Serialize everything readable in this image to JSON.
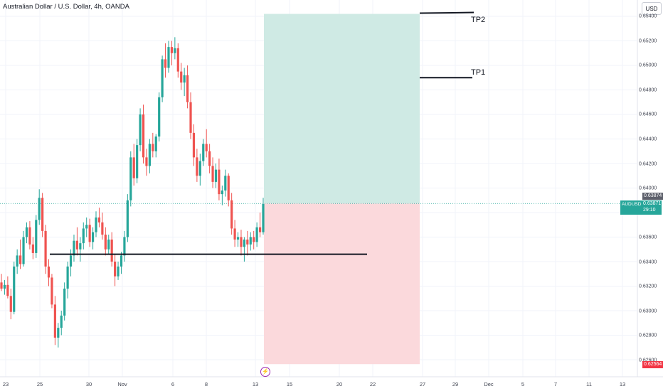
{
  "header": {
    "title": "Australian Dollar / U.S. Dollar, 4h, OANDA",
    "currency_button": "USD"
  },
  "price_axis": {
    "labels": [
      "0.65400",
      "0.65200",
      "0.65000",
      "0.64800",
      "0.64600",
      "0.64400",
      "0.64200",
      "0.64000",
      "0.63600",
      "0.63400",
      "0.63200",
      "0.63000",
      "0.62800",
      "0.62600"
    ],
    "current_price": "0.63874",
    "symbol": "AUDUSD",
    "last_price": "0.63871",
    "countdown": "29:10",
    "stop_price": "0.62564"
  },
  "time_axis": {
    "labels": [
      "23",
      "25",
      "30",
      "Nov",
      "6",
      "8",
      "13",
      "15",
      "20",
      "22",
      "27",
      "29",
      "Dec",
      "5",
      "7",
      "11",
      "13"
    ]
  },
  "annotations": {
    "tp1_label": "TP1",
    "tp2_label": "TP2"
  },
  "colors": {
    "up": "#26a69a",
    "down": "#ef5350",
    "profit_zone": "#cfeae4",
    "loss_zone": "#fbd9dc",
    "symbol_badge": "#26a69a",
    "price_badge": "#5d606b",
    "stop_badge": "#f23645"
  },
  "chart_data": {
    "type": "candlestick",
    "symbol": "AUDUSD",
    "timeframe": "4h",
    "ylim": [
      0.6248,
      0.6548
    ],
    "candles": [
      [
        0.6323,
        0.633,
        0.6316,
        0.6318
      ],
      [
        0.6318,
        0.6325,
        0.6313,
        0.6321
      ],
      [
        0.6321,
        0.6328,
        0.631,
        0.6312
      ],
      [
        0.6312,
        0.6318,
        0.6293,
        0.6299
      ],
      [
        0.6299,
        0.634,
        0.6297,
        0.6336
      ],
      [
        0.6336,
        0.635,
        0.633,
        0.6345
      ],
      [
        0.6345,
        0.6358,
        0.6334,
        0.6338
      ],
      [
        0.6338,
        0.6365,
        0.6336,
        0.636
      ],
      [
        0.636,
        0.6372,
        0.6355,
        0.6368
      ],
      [
        0.6368,
        0.6373,
        0.635,
        0.6354
      ],
      [
        0.6354,
        0.636,
        0.6342,
        0.6347
      ],
      [
        0.6347,
        0.6378,
        0.6343,
        0.6374
      ],
      [
        0.6374,
        0.6399,
        0.637,
        0.6392
      ],
      [
        0.6392,
        0.6396,
        0.636,
        0.6365
      ],
      [
        0.6365,
        0.637,
        0.633,
        0.6336
      ],
      [
        0.6336,
        0.6342,
        0.632,
        0.6327
      ],
      [
        0.6327,
        0.633,
        0.6302,
        0.6305
      ],
      [
        0.6305,
        0.6312,
        0.6272,
        0.6278
      ],
      [
        0.6278,
        0.629,
        0.627,
        0.6286
      ],
      [
        0.6286,
        0.63,
        0.628,
        0.6296
      ],
      [
        0.6296,
        0.6323,
        0.6292,
        0.6318
      ],
      [
        0.6318,
        0.634,
        0.631,
        0.6336
      ],
      [
        0.6336,
        0.635,
        0.6328,
        0.6345
      ],
      [
        0.6345,
        0.6362,
        0.634,
        0.6357
      ],
      [
        0.6357,
        0.6368,
        0.6345,
        0.635
      ],
      [
        0.635,
        0.636,
        0.634,
        0.6355
      ],
      [
        0.6355,
        0.6372,
        0.635,
        0.6367
      ],
      [
        0.6367,
        0.6376,
        0.636,
        0.637
      ],
      [
        0.637,
        0.6375,
        0.6352,
        0.6356
      ],
      [
        0.6356,
        0.6368,
        0.635,
        0.6364
      ],
      [
        0.6364,
        0.6381,
        0.636,
        0.6376
      ],
      [
        0.6376,
        0.6384,
        0.6368,
        0.6372
      ],
      [
        0.6372,
        0.638,
        0.6358,
        0.6362
      ],
      [
        0.6362,
        0.6368,
        0.6345,
        0.635
      ],
      [
        0.635,
        0.6362,
        0.6346,
        0.6358
      ],
      [
        0.6358,
        0.6364,
        0.6336,
        0.634
      ],
      [
        0.634,
        0.6346,
        0.632,
        0.6328
      ],
      [
        0.6328,
        0.634,
        0.6325,
        0.6336
      ],
      [
        0.6336,
        0.6348,
        0.633,
        0.6345
      ],
      [
        0.6345,
        0.6365,
        0.634,
        0.636
      ],
      [
        0.636,
        0.6395,
        0.6356,
        0.639
      ],
      [
        0.639,
        0.643,
        0.6385,
        0.6425
      ],
      [
        0.6425,
        0.6436,
        0.6402,
        0.6408
      ],
      [
        0.6408,
        0.644,
        0.6404,
        0.6435
      ],
      [
        0.6435,
        0.6465,
        0.643,
        0.646
      ],
      [
        0.646,
        0.6468,
        0.642,
        0.6425
      ],
      [
        0.6425,
        0.6432,
        0.641,
        0.6418
      ],
      [
        0.6418,
        0.644,
        0.6412,
        0.6436
      ],
      [
        0.6436,
        0.6445,
        0.6425,
        0.643
      ],
      [
        0.643,
        0.6444,
        0.6425,
        0.6442
      ],
      [
        0.6442,
        0.6478,
        0.6438,
        0.6474
      ],
      [
        0.6474,
        0.6508,
        0.647,
        0.6505
      ],
      [
        0.6505,
        0.6518,
        0.649,
        0.6498
      ],
      [
        0.6498,
        0.652,
        0.6494,
        0.6515
      ],
      [
        0.6515,
        0.652,
        0.65,
        0.651
      ],
      [
        0.651,
        0.6523,
        0.6505,
        0.6514
      ],
      [
        0.6514,
        0.6518,
        0.649,
        0.6495
      ],
      [
        0.6495,
        0.6502,
        0.648,
        0.6486
      ],
      [
        0.6486,
        0.6498,
        0.6475,
        0.6492
      ],
      [
        0.6492,
        0.65,
        0.6465,
        0.647
      ],
      [
        0.647,
        0.6478,
        0.644,
        0.6445
      ],
      [
        0.6445,
        0.6452,
        0.6418,
        0.6425
      ],
      [
        0.6425,
        0.6432,
        0.6405,
        0.641
      ],
      [
        0.641,
        0.6428,
        0.6402,
        0.6422
      ],
      [
        0.6422,
        0.644,
        0.6418,
        0.6436
      ],
      [
        0.6436,
        0.6448,
        0.6425,
        0.643
      ],
      [
        0.643,
        0.6436,
        0.6412,
        0.6418
      ],
      [
        0.6418,
        0.6425,
        0.64,
        0.6405
      ],
      [
        0.6405,
        0.642,
        0.64,
        0.6415
      ],
      [
        0.6415,
        0.6424,
        0.639,
        0.6395
      ],
      [
        0.6395,
        0.6402,
        0.6386,
        0.6398
      ],
      [
        0.6398,
        0.6415,
        0.6393,
        0.641
      ],
      [
        0.641,
        0.6412,
        0.6385,
        0.639
      ],
      [
        0.639,
        0.6396,
        0.6362,
        0.6367
      ],
      [
        0.6367,
        0.6374,
        0.6352,
        0.6358
      ],
      [
        0.6358,
        0.6364,
        0.6352,
        0.636
      ],
      [
        0.636,
        0.6366,
        0.6345,
        0.6352
      ],
      [
        0.6352,
        0.636,
        0.634,
        0.6358
      ],
      [
        0.6358,
        0.6365,
        0.6345,
        0.6354
      ],
      [
        0.6354,
        0.6364,
        0.6349,
        0.636
      ],
      [
        0.636,
        0.6365,
        0.635,
        0.6356
      ],
      [
        0.6356,
        0.6372,
        0.6352,
        0.6368
      ],
      [
        0.6368,
        0.638,
        0.636,
        0.6364
      ],
      [
        0.6364,
        0.6392,
        0.6362,
        0.6387
      ]
    ],
    "levels": [
      {
        "name": "support-line",
        "price": 0.6346
      },
      {
        "name": "tp1-line",
        "price": 0.649,
        "label": "TP1"
      },
      {
        "name": "tp2-line",
        "price": 0.6542,
        "label": "TP2"
      }
    ],
    "position": {
      "entry": 0.63874,
      "target": 0.6542,
      "stop": 0.62564
    }
  }
}
